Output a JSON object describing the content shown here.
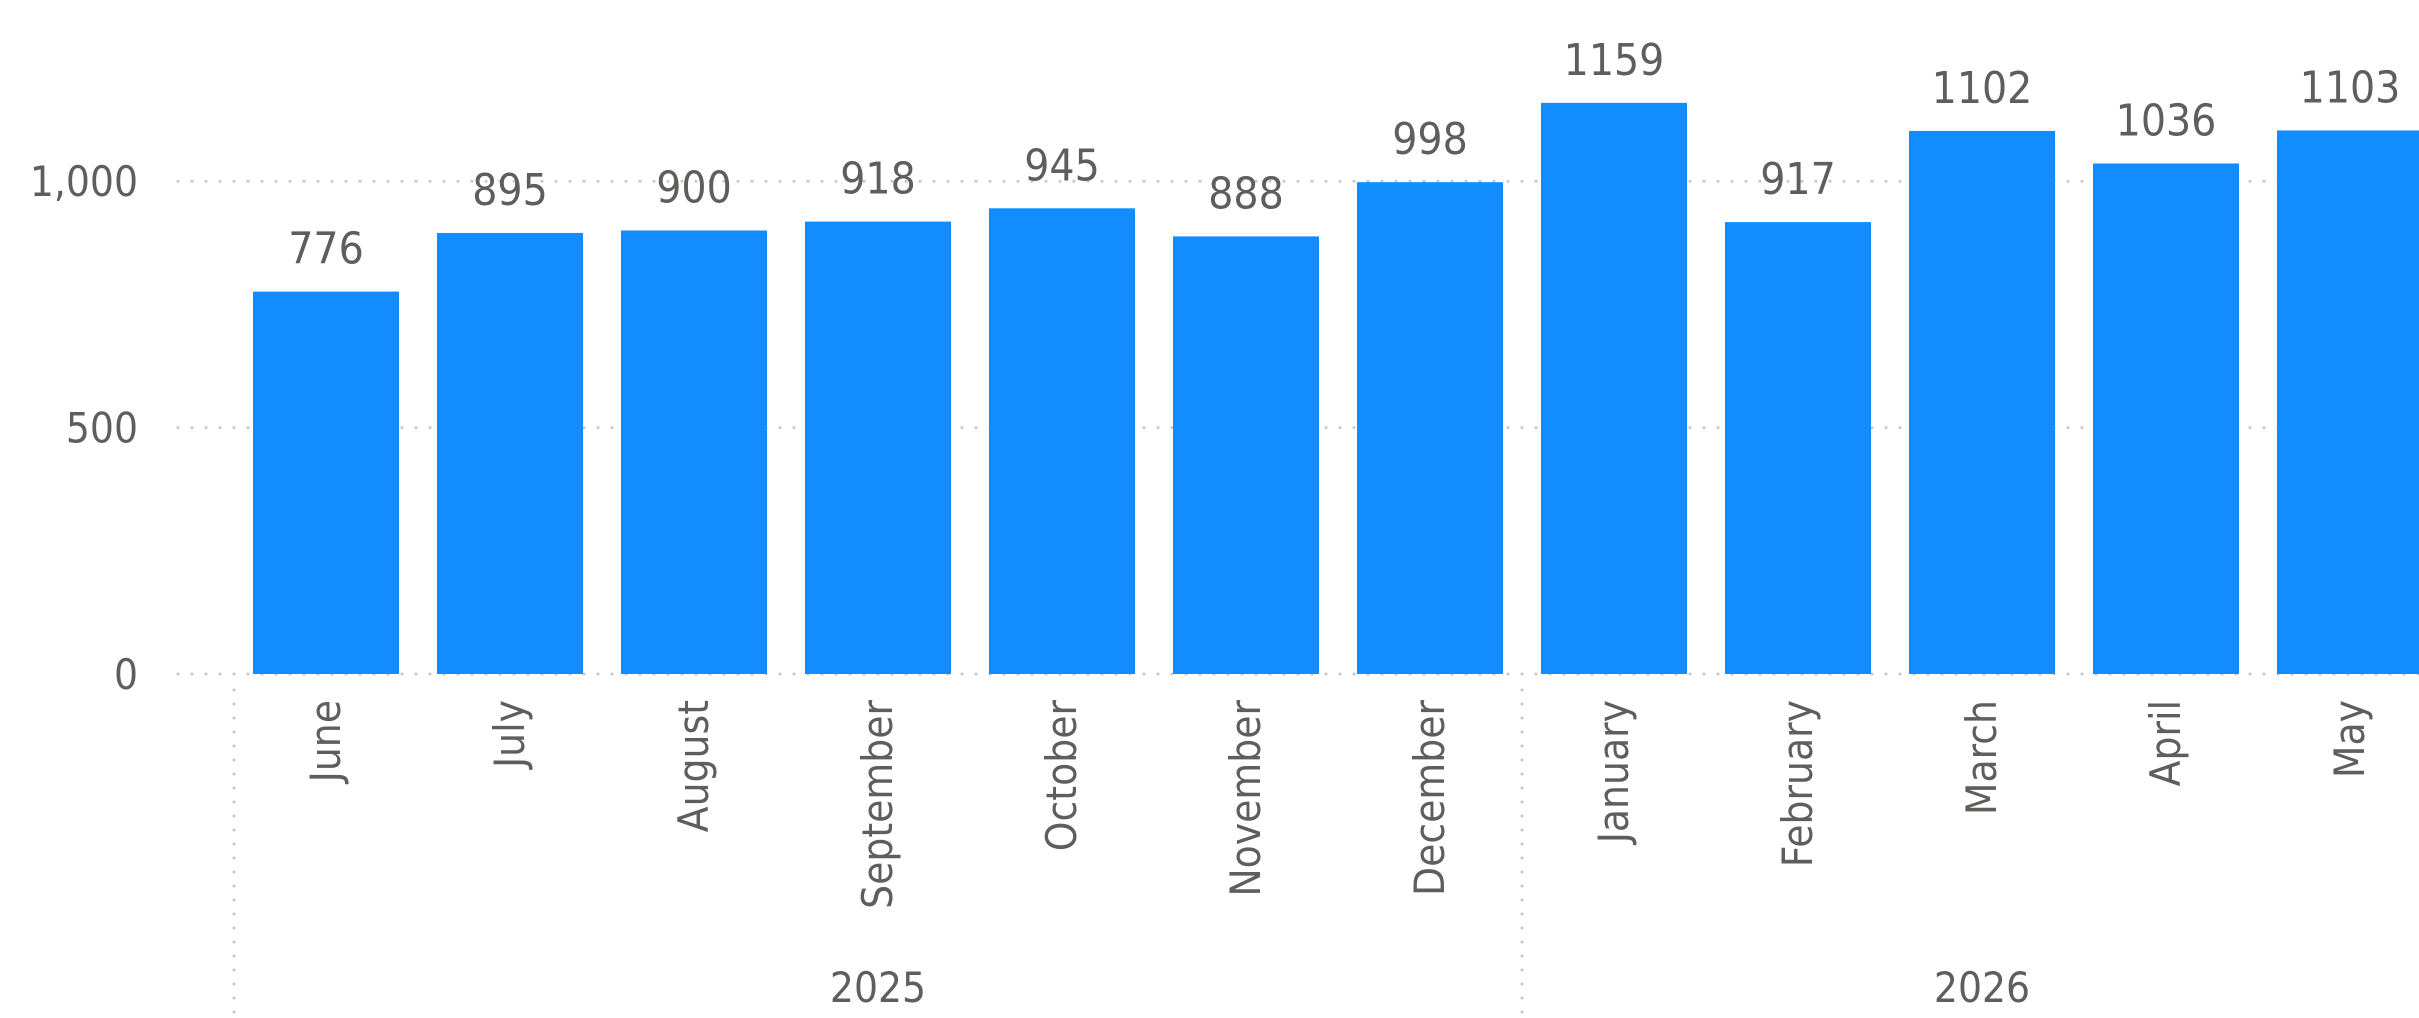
{
  "chart_data": {
    "type": "bar",
    "categories": [
      "June",
      "July",
      "August",
      "September",
      "October",
      "November",
      "December",
      "January",
      "February",
      "March",
      "April",
      "May"
    ],
    "groups": [
      {
        "label": "2025",
        "categories": [
          "June",
          "July",
          "August",
          "September",
          "October",
          "November",
          "December"
        ]
      },
      {
        "label": "2026",
        "categories": [
          "January",
          "February",
          "March",
          "April",
          "May"
        ]
      }
    ],
    "values": [
      776,
      895,
      900,
      918,
      945,
      888,
      998,
      1159,
      917,
      1102,
      1036,
      1103
    ],
    "data_labels": [
      "776",
      "895",
      "900",
      "918",
      "945",
      "888",
      "998",
      "1159",
      "917",
      "1102",
      "1036",
      "1103"
    ],
    "y_ticks": [
      0,
      500,
      1000
    ],
    "y_tick_labels": [
      "0",
      "500",
      "1,000"
    ],
    "ylim": [
      0,
      1200
    ],
    "grid": "horizontal-dotted",
    "bar_color": "#118DFF",
    "text_color": "#605E5C",
    "grid_color": "#C8C6C4"
  }
}
